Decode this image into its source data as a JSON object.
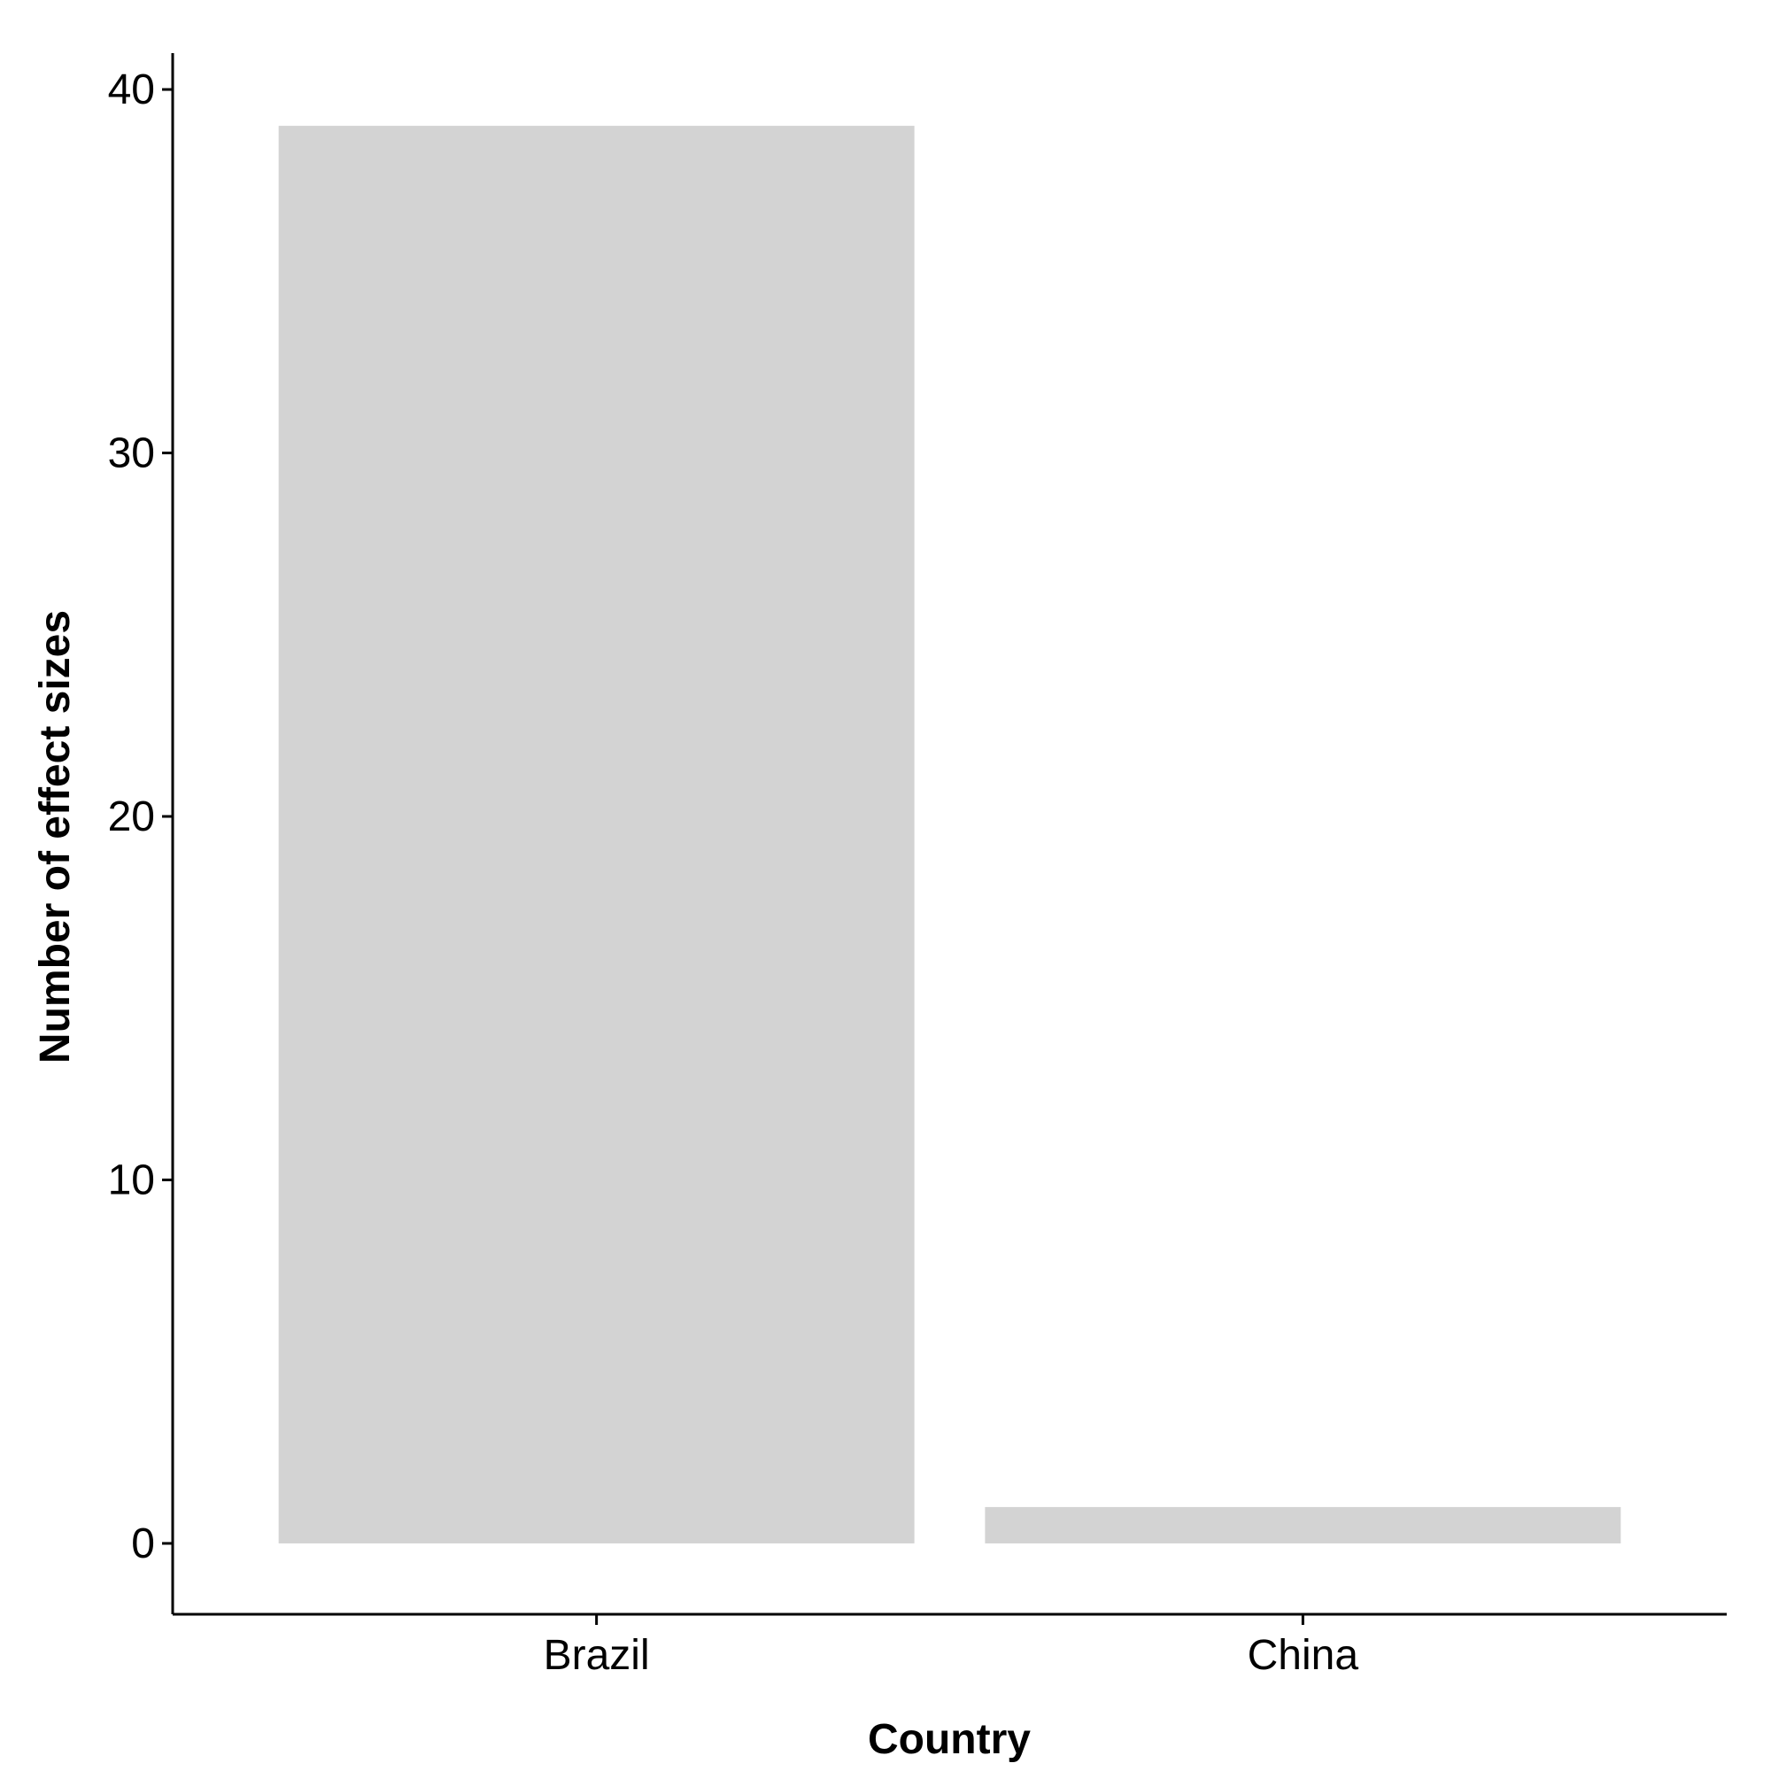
{
  "chart_data": {
    "type": "bar",
    "title": "",
    "xlabel": "Country",
    "ylabel": "Number of effect sizes",
    "categories": [
      "Brazil",
      "China"
    ],
    "values": [
      39,
      1
    ],
    "ylim": [
      -1.95,
      41
    ],
    "yticks": [
      0,
      10,
      20,
      30,
      40
    ],
    "grid": false,
    "legend": "none",
    "colors": {
      "bar": "#d3d3d3",
      "axis": "#000000",
      "background": "#ffffff"
    }
  }
}
